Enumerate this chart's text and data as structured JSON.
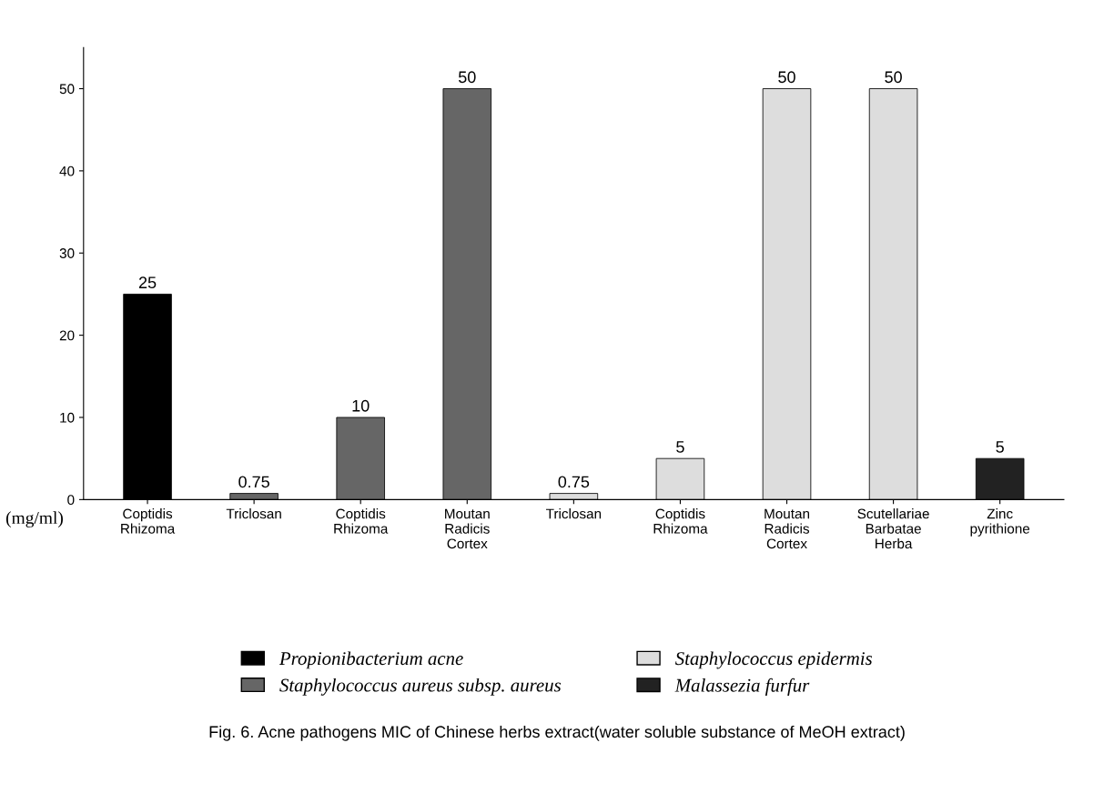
{
  "chart_data": {
    "type": "bar",
    "categories": [
      "Coptidis\nRhizoma",
      "Triclosan",
      "Coptidis\nRhizoma",
      "Moutan\nRadicis\nCortex",
      "Triclosan",
      "Coptidis\nRhizoma",
      "Moutan\nRadicis\nCortex",
      "Scutellariae\nBarbatae\nHerba",
      "Zinc\npyrithione"
    ],
    "series": [
      {
        "name": "Propionibacterium acne",
        "color": "#000000",
        "values": [
          25,
          null,
          null,
          null,
          null,
          null,
          null,
          null,
          null
        ]
      },
      {
        "name": "Staphylococcus aureus subsp. aureus",
        "color": "#666666",
        "values": [
          null,
          0.75,
          10,
          50,
          null,
          null,
          null,
          null,
          null
        ]
      },
      {
        "name": "Staphylococcus epidermis",
        "color": "#dddddd",
        "values": [
          null,
          null,
          null,
          null,
          0.75,
          5,
          50,
          50,
          null
        ]
      },
      {
        "name": "Malassezia furfur",
        "color": "#222222",
        "values": [
          null,
          null,
          null,
          null,
          null,
          null,
          null,
          null,
          5
        ]
      }
    ],
    "ylabel": "(mg/ml)",
    "ylim": [
      0,
      55
    ],
    "yticks": [
      0,
      10,
      20,
      30,
      40,
      50
    ],
    "data_labels": true,
    "grid": false,
    "legend": "bottom",
    "annotations": [
      "Fig. 6. Acne pathogens MIC of Chinese herbs extract(water soluble substance of MeOH extract)"
    ]
  }
}
